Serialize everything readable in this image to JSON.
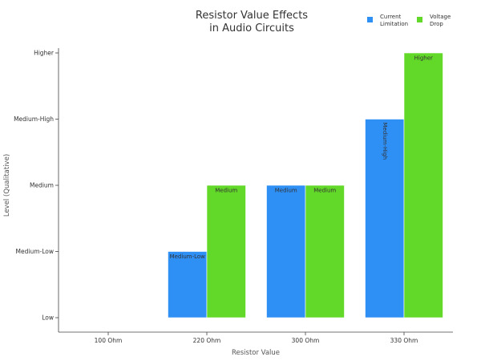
{
  "chart_data": {
    "type": "bar",
    "title_lines": [
      "Resistor Value Effects",
      "in Audio Circuits"
    ],
    "xlabel": "Resistor Value",
    "ylabel": "Level (Qualitative)",
    "categories": [
      "100 Ohm",
      "220 Ohm",
      "300 Ohm",
      "330 Ohm"
    ],
    "levels": [
      "Low",
      "Medium-Low",
      "Medium",
      "Medium-High",
      "Higher"
    ],
    "ylim": [
      0,
      4
    ],
    "legend_position": "top-right",
    "series": [
      {
        "name_lines": [
          "Current",
          "Limitation"
        ],
        "color": "#2e8ff5",
        "values": [
          null,
          1,
          2,
          3
        ],
        "labels": [
          null,
          "Medium-Low",
          "Medium",
          "Medium-High"
        ],
        "label_rotations": [
          0,
          0,
          0,
          90
        ]
      },
      {
        "name_lines": [
          "Voltage",
          "Drop"
        ],
        "color": "#62d828",
        "values": [
          null,
          2,
          2,
          4
        ],
        "labels": [
          null,
          "Medium",
          "Medium",
          "Higher"
        ],
        "label_rotations": [
          0,
          0,
          0,
          0
        ]
      }
    ]
  }
}
